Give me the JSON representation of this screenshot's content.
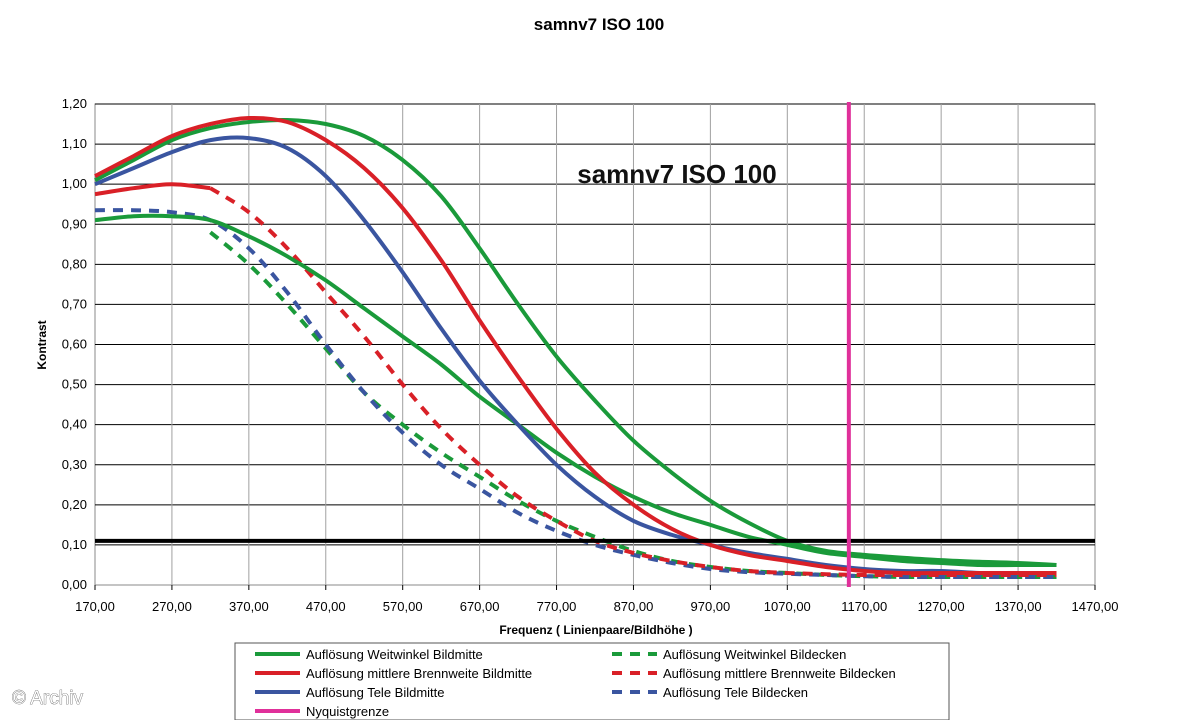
{
  "colors": {
    "weit": "#1a9a3a",
    "mittel": "#d92027",
    "tele": "#3a55a0",
    "nyquist": "#e0309a",
    "threshold": "#000000",
    "grid": "#000000"
  },
  "credit": "© Archiv",
  "chart_data": {
    "type": "line",
    "title": "samnv7 ISO 100",
    "inner_title": "samnv7 ISO 100",
    "xlabel": "Frequenz ( Linienpaare/Bildhöhe )",
    "ylabel": "Kontrast",
    "xlim": [
      170,
      1470
    ],
    "ylim": [
      0,
      1.2
    ],
    "x_ticks": [
      "170,00",
      "270,00",
      "370,00",
      "470,00",
      "570,00",
      "670,00",
      "770,00",
      "870,00",
      "970,00",
      "1070,00",
      "1170,00",
      "1270,00",
      "1370,00",
      "1470,00"
    ],
    "y_ticks": [
      "0,00",
      "0,10",
      "0,20",
      "0,30",
      "0,40",
      "0,50",
      "0,60",
      "0,70",
      "0,80",
      "0,90",
      "1,00",
      "1,10",
      "1,20"
    ],
    "threshold_y": 0.11,
    "nyquist_x": 1150,
    "series": [
      {
        "key": "weit_mitte",
        "name": "Auflösung Weitwinkel Bildmitte",
        "color": "weit",
        "dashed": false,
        "x": [
          170,
          220,
          270,
          320,
          370,
          420,
          470,
          520,
          570,
          620,
          670,
          720,
          770,
          820,
          870,
          920,
          970,
          1020,
          1070,
          1120,
          1170,
          1220,
          1270,
          1320,
          1370,
          1420
        ],
        "y": [
          0.91,
          0.92,
          0.92,
          0.91,
          0.87,
          0.82,
          0.76,
          0.69,
          0.62,
          0.55,
          0.47,
          0.4,
          0.33,
          0.27,
          0.22,
          0.18,
          0.15,
          0.12,
          0.1,
          0.08,
          0.07,
          0.06,
          0.055,
          0.05,
          0.05,
          0.05
        ]
      },
      {
        "key": "weit_mitte_solid",
        "name": "Auflösung Weitwinkel Bildmitte",
        "color": "weit",
        "dashed": false,
        "legend_hidden": true,
        "x": [
          170,
          220,
          270,
          320,
          370,
          420,
          470,
          520,
          570,
          620,
          670,
          720,
          770,
          820,
          870,
          920,
          970,
          1020,
          1070,
          1120,
          1170,
          1220,
          1270,
          1320,
          1370,
          1420
        ],
        "y": [
          1.01,
          1.06,
          1.11,
          1.14,
          1.155,
          1.16,
          1.15,
          1.12,
          1.06,
          0.97,
          0.84,
          0.7,
          0.57,
          0.46,
          0.36,
          0.28,
          0.21,
          0.155,
          0.11,
          0.085,
          0.075,
          0.068,
          0.062,
          0.058,
          0.055,
          0.05
        ]
      },
      {
        "key": "mittel_mitte",
        "name": "Auflösung mittlere Brennweite Bildmitte",
        "color": "mittel",
        "dashed": false,
        "x": [
          170,
          220,
          270,
          320,
          370,
          420,
          470,
          520,
          570,
          620,
          670,
          720,
          770,
          820,
          870,
          920,
          970,
          1020,
          1070,
          1120,
          1170,
          1220,
          1270,
          1320,
          1370,
          1420
        ],
        "y": [
          1.02,
          1.07,
          1.12,
          1.15,
          1.165,
          1.155,
          1.11,
          1.04,
          0.94,
          0.81,
          0.66,
          0.52,
          0.39,
          0.28,
          0.2,
          0.14,
          0.1,
          0.075,
          0.06,
          0.045,
          0.035,
          0.03,
          0.03,
          0.03,
          0.03,
          0.03
        ]
      },
      {
        "key": "tele_mitte",
        "name": "Auflösung Tele Bildmitte",
        "color": "tele",
        "dashed": false,
        "x": [
          170,
          220,
          270,
          320,
          370,
          420,
          470,
          520,
          570,
          620,
          670,
          720,
          770,
          820,
          870,
          920,
          970,
          1020,
          1070,
          1120,
          1170,
          1220,
          1270,
          1320,
          1370,
          1420
        ],
        "y": [
          1.0,
          1.04,
          1.08,
          1.11,
          1.115,
          1.09,
          1.02,
          0.91,
          0.78,
          0.64,
          0.51,
          0.4,
          0.3,
          0.22,
          0.16,
          0.125,
          0.1,
          0.08,
          0.065,
          0.05,
          0.04,
          0.035,
          0.035,
          0.03,
          0.03,
          0.03
        ]
      },
      {
        "key": "mittel_mitte_low",
        "name": "Auflösung mittlere Brennweite Bildmitte",
        "color": "mittel",
        "dashed": false,
        "legend_hidden": true,
        "x": [
          170,
          220,
          270,
          320
        ],
        "y": [
          0.975,
          0.99,
          1.0,
          0.99
        ]
      },
      {
        "key": "weit_ecken",
        "name": "Auflösung Weitwinkel Bildecken",
        "color": "weit",
        "dashed": true,
        "x": [
          320,
          370,
          420,
          470,
          520,
          570,
          620,
          670,
          720,
          770,
          820,
          870,
          920,
          970,
          1020,
          1070,
          1120,
          1170,
          1220,
          1270,
          1320,
          1370,
          1420
        ],
        "y": [
          0.88,
          0.8,
          0.7,
          0.59,
          0.48,
          0.4,
          0.33,
          0.27,
          0.21,
          0.16,
          0.12,
          0.085,
          0.06,
          0.045,
          0.035,
          0.03,
          0.025,
          0.022,
          0.02,
          0.02,
          0.02,
          0.02,
          0.02
        ]
      },
      {
        "key": "mittel_ecken",
        "name": "Auflösung mittlere Brennweite Bildecken",
        "color": "mittel",
        "dashed": true,
        "x": [
          320,
          370,
          420,
          470,
          520,
          570,
          620,
          670,
          720,
          770,
          820,
          870,
          920,
          970,
          1020,
          1070,
          1120,
          1170,
          1220,
          1270,
          1320,
          1370,
          1420
        ],
        "y": [
          0.99,
          0.93,
          0.84,
          0.73,
          0.62,
          0.5,
          0.39,
          0.3,
          0.22,
          0.16,
          0.11,
          0.08,
          0.06,
          0.045,
          0.035,
          0.03,
          0.027,
          0.025,
          0.025,
          0.025,
          0.025,
          0.025,
          0.025
        ]
      },
      {
        "key": "tele_ecken",
        "name": "Auflösung Tele Bildecken",
        "color": "tele",
        "dashed": true,
        "x": [
          170,
          220,
          270,
          320,
          370,
          420,
          470,
          520,
          570,
          620,
          670,
          720,
          770,
          820,
          870,
          920,
          970,
          1020,
          1070,
          1120,
          1170,
          1220,
          1270,
          1320,
          1370,
          1420
        ],
        "y": [
          0.935,
          0.935,
          0.93,
          0.91,
          0.84,
          0.73,
          0.6,
          0.48,
          0.38,
          0.3,
          0.24,
          0.18,
          0.135,
          0.1,
          0.075,
          0.055,
          0.04,
          0.032,
          0.028,
          0.025,
          0.022,
          0.02,
          0.02,
          0.02,
          0.02,
          0.02
        ]
      }
    ],
    "legend": [
      {
        "name": "Auflösung Weitwinkel Bildmitte",
        "color": "weit",
        "dashed": false
      },
      {
        "name": "Auflösung Weitwinkel Bildecken",
        "color": "weit",
        "dashed": true
      },
      {
        "name": "Auflösung mittlere Brennweite Bildmitte",
        "color": "mittel",
        "dashed": false
      },
      {
        "name": "Auflösung mittlere Brennweite Bildecken",
        "color": "mittel",
        "dashed": true
      },
      {
        "name": "Auflösung Tele Bildmitte",
        "color": "tele",
        "dashed": false
      },
      {
        "name": "Auflösung Tele Bildecken",
        "color": "tele",
        "dashed": true
      },
      {
        "name": "Nyquistgrenze",
        "color": "nyquist",
        "dashed": false
      }
    ]
  }
}
